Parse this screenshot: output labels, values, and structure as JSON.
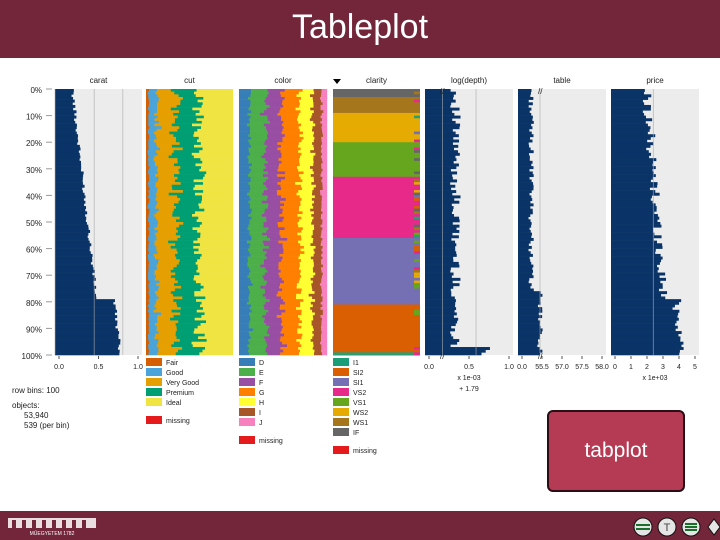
{
  "slide": {
    "title": "Tableplot",
    "callout": "tabplot",
    "footer_logo_text": "MŰEGYETEM 1782"
  },
  "chart_data": {
    "type": "tableplot",
    "columns": [
      {
        "name": "carat",
        "kind": "numeric",
        "axis_ticks": [
          "0.0",
          "0.5",
          "1.0"
        ]
      },
      {
        "name": "cut",
        "kind": "categorical"
      },
      {
        "name": "color",
        "kind": "categorical"
      },
      {
        "name": "clarity",
        "kind": "categorical"
      },
      {
        "name": "log(depth)",
        "kind": "numeric",
        "axis_ticks": [
          "0.0",
          "0.5",
          "1.0"
        ],
        "axis_note": "x 1e-03",
        "axis_note2": "+ 1.79"
      },
      {
        "name": "table",
        "kind": "numeric",
        "axis_ticks": [
          "0.0",
          "55.5",
          "57.0",
          "57.5",
          "58.0"
        ]
      },
      {
        "name": "price",
        "kind": "numeric",
        "axis_ticks": [
          "0",
          "1",
          "2",
          "3",
          "4",
          "5"
        ],
        "axis_note": "x 1e+03"
      }
    ],
    "y_ticks": [
      "0%",
      "10%",
      "20%",
      "30%",
      "40%",
      "50%",
      "60%",
      "70%",
      "80%",
      "90%",
      "100%"
    ],
    "legend": {
      "cut": [
        "Fair",
        "Good",
        "Very Good",
        "Premium",
        "Ideal",
        "missing"
      ],
      "color": [
        "D",
        "E",
        "F",
        "G",
        "H",
        "I",
        "J",
        "missing"
      ],
      "clarity": [
        "I1",
        "SI2",
        "SI1",
        "VS2",
        "VS1",
        "WS2",
        "WS1",
        "IF",
        "missing"
      ]
    },
    "colors": {
      "numeric": "#0a3467",
      "cut": [
        "#d55e00",
        "#4aa3d9",
        "#e69f00",
        "#009e73",
        "#f0e442",
        "#e41a1c"
      ],
      "color": [
        "#377eb8",
        "#4daf4a",
        "#984ea3",
        "#ff7f00",
        "#ffff33",
        "#a65628",
        "#f781bf",
        "#e41a1c"
      ],
      "clarity": [
        "#1b9e77",
        "#d95f02",
        "#7570b3",
        "#e7298a",
        "#66a61e",
        "#e6ab02",
        "#a6761d",
        "#666666",
        "#e41a1c"
      ]
    },
    "info": {
      "row_bins": "row bins: 100",
      "objects_label": "objects:",
      "objects_value": "53,940",
      "per_bin": "539 (per bin)"
    }
  }
}
